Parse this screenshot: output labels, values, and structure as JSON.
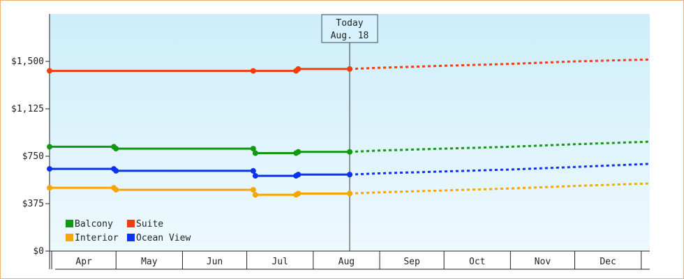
{
  "chart_data": {
    "type": "line",
    "ylim": [
      0,
      1875
    ],
    "yticks": [
      {
        "value": 0,
        "label": "$0"
      },
      {
        "value": 375,
        "label": "$375"
      },
      {
        "value": 750,
        "label": "$750"
      },
      {
        "value": 1125,
        "label": "$1,125"
      },
      {
        "value": 1500,
        "label": "$1,500"
      }
    ],
    "months": [
      "Apr",
      "May",
      "Jun",
      "Jul",
      "Aug",
      "Sep",
      "Oct",
      "Nov",
      "Dec"
    ],
    "x_range": [
      "2015-03-31",
      "2016-01-05"
    ],
    "month_starts": [
      "2015-04-01",
      "2015-05-01",
      "2015-06-01",
      "2015-07-01",
      "2015-08-01",
      "2015-09-01",
      "2015-10-01",
      "2015-11-01",
      "2015-12-01",
      "2016-01-01"
    ],
    "today": {
      "line1": "Today",
      "line2": "Aug. 18",
      "date": "2015-08-18"
    },
    "background": {
      "top": "#cdeefa",
      "bottom": "#eef9fd"
    },
    "series": [
      {
        "name": "Suite",
        "color": "#f03c0f",
        "history": [
          [
            "2015-03-31",
            1425
          ],
          [
            "2015-07-04",
            1425
          ],
          [
            "2015-07-24",
            1425
          ],
          [
            "2015-07-25",
            1440
          ],
          [
            "2015-08-18",
            1440
          ]
        ],
        "markers": [
          [
            "2015-03-31",
            1425
          ],
          [
            "2015-07-04",
            1425
          ],
          [
            "2015-07-24",
            1425
          ],
          [
            "2015-07-25",
            1440
          ],
          [
            "2015-08-18",
            1440
          ]
        ],
        "forecast": [
          [
            "2015-08-18",
            1440
          ],
          [
            "2015-09-01",
            1450
          ],
          [
            "2015-10-01",
            1465
          ],
          [
            "2015-11-01",
            1480
          ],
          [
            "2015-12-01",
            1500
          ],
          [
            "2016-01-05",
            1515
          ]
        ]
      },
      {
        "name": "Balcony",
        "color": "#119911",
        "history": [
          [
            "2015-03-31",
            825
          ],
          [
            "2015-04-30",
            825
          ],
          [
            "2015-05-01",
            810
          ],
          [
            "2015-07-04",
            810
          ],
          [
            "2015-07-05",
            775
          ],
          [
            "2015-07-24",
            775
          ],
          [
            "2015-07-25",
            785
          ],
          [
            "2015-08-18",
            785
          ]
        ],
        "markers": [
          [
            "2015-03-31",
            825
          ],
          [
            "2015-04-30",
            825
          ],
          [
            "2015-05-01",
            810
          ],
          [
            "2015-07-04",
            810
          ],
          [
            "2015-07-05",
            775
          ],
          [
            "2015-07-24",
            775
          ],
          [
            "2015-07-25",
            785
          ],
          [
            "2015-08-18",
            785
          ]
        ],
        "forecast": [
          [
            "2015-08-18",
            785
          ],
          [
            "2015-09-01",
            795
          ],
          [
            "2015-10-01",
            810
          ],
          [
            "2015-11-01",
            825
          ],
          [
            "2015-12-01",
            845
          ],
          [
            "2016-01-05",
            865
          ]
        ]
      },
      {
        "name": "Ocean View",
        "color": "#0a32f0",
        "history": [
          [
            "2015-03-31",
            650
          ],
          [
            "2015-04-30",
            650
          ],
          [
            "2015-05-01",
            635
          ],
          [
            "2015-07-04",
            635
          ],
          [
            "2015-07-05",
            595
          ],
          [
            "2015-07-24",
            595
          ],
          [
            "2015-07-25",
            605
          ],
          [
            "2015-08-18",
            605
          ]
        ],
        "markers": [
          [
            "2015-03-31",
            650
          ],
          [
            "2015-04-30",
            650
          ],
          [
            "2015-05-01",
            635
          ],
          [
            "2015-07-04",
            635
          ],
          [
            "2015-07-05",
            595
          ],
          [
            "2015-07-24",
            595
          ],
          [
            "2015-07-25",
            605
          ],
          [
            "2015-08-18",
            605
          ]
        ],
        "forecast": [
          [
            "2015-08-18",
            605
          ],
          [
            "2015-09-01",
            615
          ],
          [
            "2015-10-01",
            630
          ],
          [
            "2015-11-01",
            645
          ],
          [
            "2015-12-01",
            665
          ],
          [
            "2016-01-05",
            690
          ]
        ]
      },
      {
        "name": "Interior",
        "color": "#f5a50a",
        "history": [
          [
            "2015-03-31",
            500
          ],
          [
            "2015-04-30",
            500
          ],
          [
            "2015-05-01",
            485
          ],
          [
            "2015-07-04",
            485
          ],
          [
            "2015-07-05",
            445
          ],
          [
            "2015-07-24",
            445
          ],
          [
            "2015-07-25",
            455
          ],
          [
            "2015-08-18",
            455
          ]
        ],
        "markers": [
          [
            "2015-03-31",
            500
          ],
          [
            "2015-04-30",
            500
          ],
          [
            "2015-05-01",
            485
          ],
          [
            "2015-07-04",
            485
          ],
          [
            "2015-07-05",
            445
          ],
          [
            "2015-07-24",
            445
          ],
          [
            "2015-07-25",
            455
          ],
          [
            "2015-08-18",
            455
          ]
        ],
        "forecast": [
          [
            "2015-08-18",
            455
          ],
          [
            "2015-09-01",
            465
          ],
          [
            "2015-10-01",
            480
          ],
          [
            "2015-11-01",
            495
          ],
          [
            "2015-12-01",
            515
          ],
          [
            "2016-01-05",
            535
          ]
        ]
      }
    ],
    "legend": {
      "placement": "bottom-left",
      "rows": [
        [
          {
            "label": "Balcony",
            "color": "#119911"
          },
          {
            "label": "Suite",
            "color": "#f03c0f"
          }
        ],
        [
          {
            "label": "Interior",
            "color": "#f5a50a"
          },
          {
            "label": "Ocean View",
            "color": "#0a32f0"
          }
        ]
      ]
    }
  }
}
